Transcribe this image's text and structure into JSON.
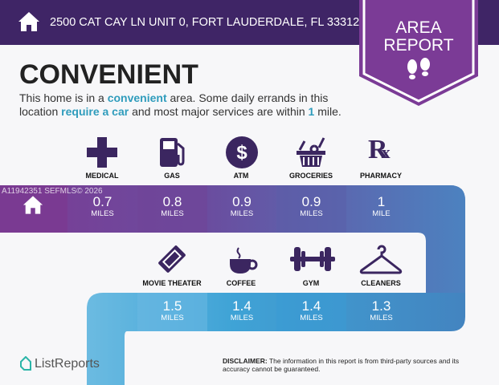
{
  "header": {
    "address": "2500 CAT CAY LN UNIT 0, FORT LAUDERDALE, FL 33312",
    "badge_line1": "AREA",
    "badge_line2": "REPORT"
  },
  "headline": "CONVENIENT",
  "description": {
    "p1": "This home is in a ",
    "h1": "convenient",
    "p2": " area. Some daily errands in this location ",
    "h2": "require a car",
    "p3": " and most major services are within ",
    "h3": "1",
    "p4": " mile."
  },
  "watermark": "A11942351  SEFMLS© 2026",
  "row1": [
    {
      "label": "MEDICAL",
      "value": "0.7",
      "unit": "MILES",
      "icon": "medical-cross-icon"
    },
    {
      "label": "GAS",
      "value": "0.8",
      "unit": "MILES",
      "icon": "gas-pump-icon"
    },
    {
      "label": "ATM",
      "value": "0.9",
      "unit": "MILES",
      "icon": "dollar-icon"
    },
    {
      "label": "GROCERIES",
      "value": "0.9",
      "unit": "MILES",
      "icon": "grocery-basket-icon"
    },
    {
      "label": "PHARMACY",
      "value": "1",
      "unit": "MILE",
      "icon": "rx-icon"
    }
  ],
  "row2": [
    {
      "label": "MOVIE THEATER",
      "value": "1.5",
      "unit": "MILES",
      "icon": "ticket-icon"
    },
    {
      "label": "COFFEE",
      "value": "1.4",
      "unit": "MILES",
      "icon": "coffee-cup-icon"
    },
    {
      "label": "GYM",
      "value": "1.4",
      "unit": "MILES",
      "icon": "dumbbell-icon"
    },
    {
      "label": "CLEANERS",
      "value": "1.3",
      "unit": "MILES",
      "icon": "hanger-icon"
    }
  ],
  "footer": {
    "logo": "ListReports",
    "disclaimer_label": "DISCLAIMER:",
    "disclaimer": " The information in this report is from third-party sources and its accuracy cannot be guaranteed."
  },
  "colors": {
    "header": "#3f2566",
    "badge": "#7b3b96",
    "icon": "#3b2660",
    "accent": "#2f9cbc"
  }
}
